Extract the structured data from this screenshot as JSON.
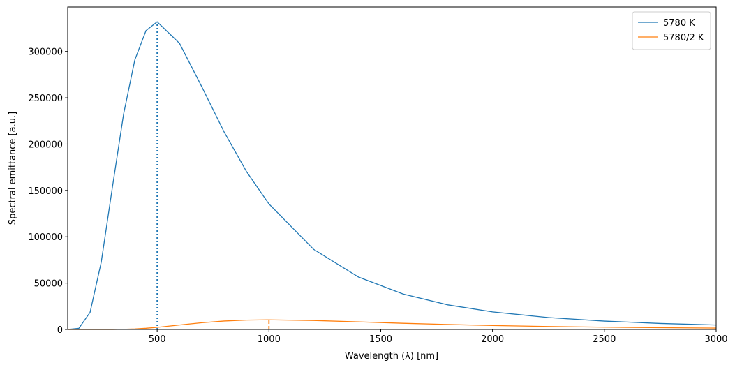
{
  "chart_data": {
    "type": "line",
    "xlabel": "Wavelength (λ) [nm]",
    "ylabel": "Spectral emittance [a.u.]",
    "x": [
      100,
      150,
      200,
      250,
      300,
      350,
      400,
      450,
      500,
      600,
      700,
      800,
      900,
      1000,
      1200,
      1400,
      1600,
      1800,
      2000,
      2250,
      2500,
      2750,
      3000
    ],
    "series": [
      {
        "name": "5780 K",
        "color": "#1f77b4",
        "values": [
          2,
          1231,
          18400,
          72600,
          153600,
          232500,
          290700,
          322500,
          332000,
          308800,
          261700,
          212900,
          170200,
          135400,
          86400,
          56600,
          38200,
          26500,
          18900,
          12800,
          9000,
          6460,
          4800
        ]
      },
      {
        "name": "5780/2 K",
        "color": "#ff7f0e",
        "values": [
          0,
          0,
          0,
          3,
          38,
          190,
          575,
          1270,
          2270,
          4800,
          7270,
          9080,
          10080,
          10375,
          9650,
          8180,
          6650,
          5320,
          4230,
          3190,
          2440,
          1875,
          1450
        ]
      }
    ],
    "vlines": [
      {
        "x": 500,
        "y": 332000,
        "color": "#1f77b4",
        "style": "dotted"
      },
      {
        "x": 1000,
        "y": 10375,
        "color": "#ff7f0e",
        "style": "dashed"
      }
    ],
    "xlim": [
      100,
      3000
    ],
    "ylim": [
      0,
      348000
    ],
    "xticks": [
      500,
      1000,
      1500,
      2000,
      2500,
      3000
    ],
    "yticks": [
      0,
      50000,
      100000,
      150000,
      200000,
      250000,
      300000
    ],
    "legend": "upper-right"
  }
}
